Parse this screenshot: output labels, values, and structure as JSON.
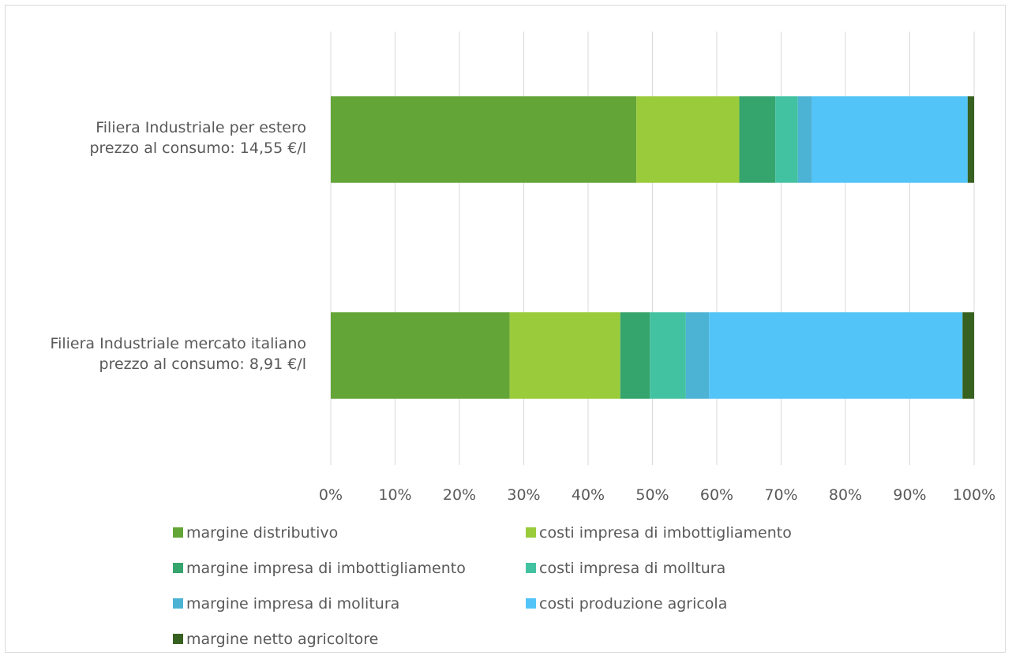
{
  "chart_data": {
    "type": "bar",
    "orientation": "horizontal",
    "stacked": true,
    "percent": true,
    "title": "",
    "xlabel": "",
    "ylabel": "",
    "xlim": [
      0,
      100
    ],
    "x_tick_labels": [
      "0%",
      "10%",
      "20%",
      "30%",
      "40%",
      "50%",
      "60%",
      "70%",
      "80%",
      "90%",
      "100%"
    ],
    "grid": true,
    "legend_position": "bottom",
    "categories": [
      [
        "Filiera Industriale per estero",
        "prezzo al consumo: 14,55 €/l"
      ],
      [
        "Filiera Industriale mercato italiano",
        "prezzo al consumo: 8,91 €/l"
      ]
    ],
    "series": [
      {
        "name": "margine distributivo",
        "color": "#63A537",
        "values": [
          47.5,
          27.8
        ]
      },
      {
        "name": "costi impresa di imbottigliamento",
        "color": "#9ACB3B",
        "values": [
          16.0,
          17.2
        ]
      },
      {
        "name": "margine impresa di imbottigliamento",
        "color": "#35A56D",
        "values": [
          5.6,
          4.6
        ]
      },
      {
        "name": "costi impresa di molltura",
        "color": "#43C2A1",
        "values": [
          3.5,
          5.6
        ]
      },
      {
        "name": "margine impresa di molitura",
        "color": "#4CB3D5",
        "values": [
          2.2,
          3.6
        ]
      },
      {
        "name": "costi produzione agricola",
        "color": "#52C4F7",
        "values": [
          24.2,
          39.4
        ]
      },
      {
        "name": "margine netto agricoltore",
        "color": "#376120",
        "values": [
          1.0,
          1.8
        ]
      }
    ]
  }
}
